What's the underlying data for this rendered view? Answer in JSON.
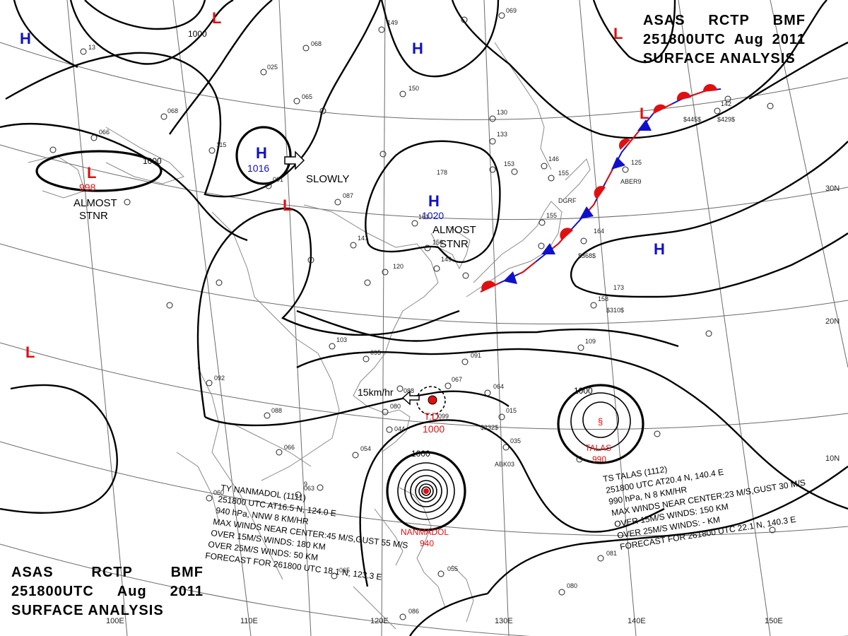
{
  "header": {
    "agency": [
      "ASAS",
      "RCTP",
      "BMF"
    ],
    "time": [
      "251800UTC",
      "Aug",
      "2011"
    ],
    "title": "SURFACE ANALYSIS"
  },
  "colors": {
    "high": "#1010cc",
    "low": "#e01010",
    "isobar": "#000000",
    "grid": "#666666"
  },
  "grid": {
    "lat_labels": [
      "30N",
      "20N",
      "10N"
    ],
    "lon_labels": [
      "110E",
      "120E",
      "130E",
      "140E",
      "150E",
      "100E"
    ]
  },
  "pressure_centers": [
    {
      "type": "H",
      "pressure": ""
    },
    {
      "type": "H",
      "pressure": "1016"
    },
    {
      "type": "H",
      "pressure": ""
    },
    {
      "type": "H",
      "pressure": "1020"
    },
    {
      "type": "H",
      "pressure": ""
    },
    {
      "type": "L",
      "pressure": ""
    },
    {
      "type": "L",
      "pressure": ""
    },
    {
      "type": "L",
      "pressure": "998"
    },
    {
      "type": "L",
      "pressure": ""
    },
    {
      "type": "L",
      "pressure": ""
    },
    {
      "type": "L",
      "pressure": ""
    }
  ],
  "isobar_labels": [
    "1000",
    "1000",
    "1000",
    "1000"
  ],
  "motion_labels": {
    "slowly": "SLOWLY",
    "almost_stnr_1": [
      "ALMOST",
      "STNR"
    ],
    "almost_stnr_2": [
      "ALMOST",
      "STNR"
    ],
    "fd_speed": "15km/hr"
  },
  "tropical_depression": {
    "label": "T.D.",
    "pressure": "1000"
  },
  "typhoon_nanmadol": {
    "map_label": "NANMADOL",
    "map_pressure": "940",
    "info": [
      "TY  NANMADOL  (1111)",
      "251800 UTC  AT16.5 N, 124.0 E",
      "940 hPa, NNW  8 KM/HR",
      "MAX WINDS NEAR CENTER:45 M/S,GUST 55 M/S",
      "OVER 15M/S WINDS:  180 KM",
      "OVER 25M/S WINDS: 50 KM",
      "FORECAST FOR 261800 UTC 18.1 N, 123.3 E"
    ]
  },
  "storm_talas": {
    "map_label": "TALAS",
    "map_pressure": "990",
    "info": [
      "TS  TALAS  (1112)",
      "251800  UTC  AT20.4 N, 140.4 E",
      "990 hPa, N  8 KM/HR",
      "MAX WINDS NEAR CENTER:23 M/S,GUST 30 M/S",
      "OVER 15M/S WINDS: 150 KM",
      "OVER 25M/S WINDS:  - KM",
      "FORECAST FOR 261800 UTC 22.1 N, 140.3 E"
    ]
  },
  "station_codes": [
    "ABER9",
    "DGRF",
    "ABK03",
    "$232$",
    "$368$",
    "$310$",
    "$445$",
    "$429$"
  ]
}
